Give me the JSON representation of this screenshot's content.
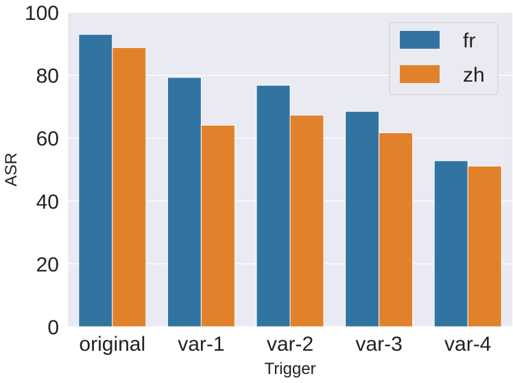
{
  "chart_data": {
    "type": "bar",
    "xlabel": "Trigger",
    "ylabel": "ASR",
    "categories": [
      "original",
      "var-1",
      "var-2",
      "var-3",
      "var-4"
    ],
    "series": [
      {
        "name": "fr",
        "color": "#3274a1",
        "values": [
          93.0,
          79.3,
          76.8,
          68.5,
          52.8
        ]
      },
      {
        "name": "zh",
        "color": "#e1812c",
        "values": [
          88.8,
          64.1,
          67.3,
          61.7,
          51.1
        ]
      }
    ],
    "ylim": [
      0,
      100
    ],
    "yticks": [
      0,
      20,
      40,
      60,
      80,
      100
    ],
    "grid": true,
    "legend_position": "top-right",
    "background_color": "#eaeaf2",
    "grid_color": "#ffffff"
  }
}
